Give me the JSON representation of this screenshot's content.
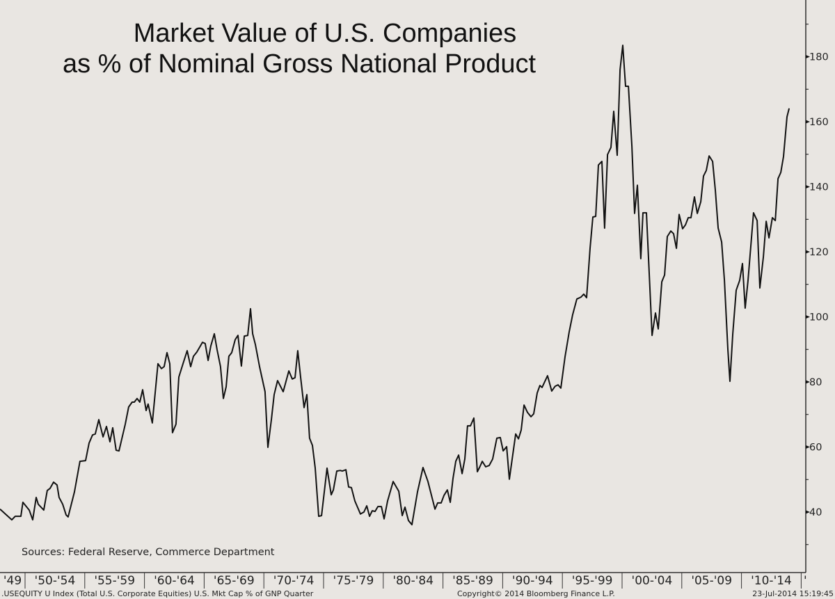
{
  "chart_data": {
    "type": "line",
    "title": [
      "Market Value of U.S. Companies",
      "as % of Nominal Gross National Product"
    ],
    "source_note": "Sources: Federal Reserve, Commerce Department",
    "xlabel": "",
    "ylabel": "",
    "y_axis_side": "right",
    "ylim": [
      28,
      197
    ],
    "xlim": [
      1947.9,
      2015.2
    ],
    "y_ticks": [
      40,
      60,
      80,
      100,
      120,
      140,
      160,
      180
    ],
    "y_minor_ticks": [
      30,
      50,
      70,
      90,
      110,
      130,
      150,
      170,
      190
    ],
    "x_bands": [
      {
        "label": "'49",
        "start": 1947.9,
        "end": 1950
      },
      {
        "label": "'50-'54",
        "start": 1950,
        "end": 1955
      },
      {
        "label": "'55-'59",
        "start": 1955,
        "end": 1960
      },
      {
        "label": "'60-'64",
        "start": 1960,
        "end": 1965
      },
      {
        "label": "'65-'69",
        "start": 1965,
        "end": 1970
      },
      {
        "label": "'70-'74",
        "start": 1970,
        "end": 1975
      },
      {
        "label": "'75-'79",
        "start": 1975,
        "end": 1980
      },
      {
        "label": "'80-'84",
        "start": 1980,
        "end": 1985
      },
      {
        "label": "'85-'89",
        "start": 1985,
        "end": 1990
      },
      {
        "label": "'90-'94",
        "start": 1990,
        "end": 1995
      },
      {
        "label": "'95-'99",
        "start": 1995,
        "end": 2000
      },
      {
        "label": "'00-'04",
        "start": 2000,
        "end": 2005
      },
      {
        "label": "'05-'09",
        "start": 2005,
        "end": 2010
      },
      {
        "label": "'10-'14",
        "start": 2010,
        "end": 2015
      },
      {
        "label": "'",
        "start": 2015,
        "end": 2015.4
      }
    ],
    "grid": false,
    "legend": "none",
    "series": [
      {
        "name": "U.S. Mkt Cap % of GNP",
        "color": "#111111",
        "x": [
          1947.9,
          1948.89,
          1949.18,
          1949.65,
          1949.82,
          1950.35,
          1950.64,
          1950.93,
          1951.11,
          1951.57,
          1951.86,
          1952.1,
          1952.39,
          1952.68,
          1952.85,
          1953.15,
          1953.44,
          1953.61,
          1954.14,
          1954.6,
          1955.07,
          1955.36,
          1955.65,
          1955.88,
          1956.18,
          1956.53,
          1956.82,
          1957.11,
          1957.34,
          1957.63,
          1957.87,
          1958.39,
          1958.68,
          1958.97,
          1959.15,
          1959.38,
          1959.61,
          1959.85,
          1960.14,
          1960.31,
          1960.66,
          1961.13,
          1961.42,
          1961.65,
          1961.89,
          1962.12,
          1962.35,
          1962.64,
          1962.88,
          1963.23,
          1963.58,
          1963.87,
          1964.1,
          1964.39,
          1964.86,
          1965.09,
          1965.33,
          1965.56,
          1965.85,
          1966.08,
          1966.37,
          1966.61,
          1966.84,
          1967.07,
          1967.31,
          1967.6,
          1967.83,
          1968.12,
          1968.36,
          1968.65,
          1968.88,
          1969.06,
          1969.29,
          1969.64,
          1970.1,
          1970.34,
          1970.63,
          1970.86,
          1971.15,
          1971.62,
          1972.09,
          1972.38,
          1972.61,
          1972.84,
          1973.08,
          1973.37,
          1973.6,
          1973.83,
          1974.07,
          1974.3,
          1974.59,
          1974.83,
          1975.29,
          1975.64,
          1975.82,
          1976.11,
          1976.4,
          1976.57,
          1976.87,
          1977.1,
          1977.33,
          1977.62,
          1978.09,
          1978.38,
          1978.62,
          1978.85,
          1979.08,
          1979.31,
          1979.55,
          1979.84,
          1980.07,
          1980.36,
          1980.83,
          1981.3,
          1981.59,
          1981.82,
          1982.11,
          1982.4,
          1982.87,
          1983.33,
          1983.74,
          1984.33,
          1984.56,
          1984.85,
          1985.08,
          1985.37,
          1985.61,
          1985.84,
          1986.07,
          1986.31,
          1986.6,
          1986.83,
          1987.06,
          1987.3,
          1987.59,
          1987.88,
          1988.06,
          1988.29,
          1988.58,
          1988.87,
          1989.16,
          1989.51,
          1989.8,
          1990.04,
          1990.33,
          1990.56,
          1991.09,
          1991.32,
          1991.55,
          1991.79,
          1992.08,
          1992.37,
          1992.6,
          1992.89,
          1993.12,
          1993.3,
          1993.76,
          1994.11,
          1994.4,
          1994.64,
          1994.87,
          1995.22,
          1995.57,
          1995.86,
          1996.21,
          1996.56,
          1996.79,
          1997.03,
          1997.32,
          1997.55,
          1997.79,
          1998.02,
          1998.31,
          1998.54,
          1998.78,
          1999.07,
          1999.3,
          1999.59,
          1999.83,
          2000.06,
          2000.29,
          2000.53,
          2000.82,
          2001.05,
          2001.28,
          2001.57,
          2001.75,
          2002.04,
          2002.51,
          2002.8,
          2003.03,
          2003.33,
          2003.56,
          2003.79,
          2004.08,
          2004.31,
          2004.55,
          2004.78,
          2005.07,
          2005.31,
          2005.54,
          2005.77,
          2006.06,
          2006.3,
          2006.59,
          2006.82,
          2007.05,
          2007.29,
          2007.58,
          2007.81,
          2008.05,
          2008.34,
          2008.57,
          2008.86,
          2009.03,
          2009.27,
          2009.56,
          2009.85,
          2010.08,
          2010.31,
          2010.55,
          2011.01,
          2011.31,
          2011.54,
          2011.83,
          2012.07,
          2012.3,
          2012.59,
          2012.83,
          2013.06,
          2013.29,
          2013.52,
          2013.81,
          2013.99
        ],
        "values": [
          40.9,
          37.6,
          38.7,
          38.7,
          43.0,
          40.6,
          37.6,
          44.5,
          42.4,
          40.6,
          46.6,
          47.3,
          49.2,
          48.3,
          44.5,
          42.4,
          39.1,
          38.5,
          46.2,
          55.6,
          55.8,
          61.2,
          63.7,
          64.0,
          68.4,
          63.1,
          66.3,
          61.6,
          65.9,
          59.0,
          58.8,
          67.0,
          72.3,
          73.8,
          73.8,
          74.9,
          73.8,
          77.6,
          71.2,
          73.2,
          67.4,
          85.6,
          84.1,
          84.7,
          89.0,
          85.6,
          64.4,
          67.0,
          81.5,
          85.6,
          89.6,
          84.7,
          87.9,
          89.2,
          92.2,
          91.8,
          86.6,
          91.1,
          94.8,
          90.0,
          84.7,
          74.9,
          78.5,
          87.9,
          89.0,
          93.0,
          94.3,
          84.9,
          94.1,
          94.3,
          102.5,
          94.8,
          91.5,
          84.7,
          77.0,
          59.9,
          68.4,
          76.1,
          80.4,
          77.0,
          83.4,
          80.9,
          81.3,
          89.6,
          81.3,
          72.1,
          76.1,
          62.7,
          60.5,
          53.5,
          38.7,
          38.9,
          53.5,
          45.3,
          46.8,
          52.6,
          52.8,
          52.6,
          53.0,
          47.7,
          47.5,
          43.4,
          39.4,
          40.0,
          41.9,
          38.7,
          40.4,
          40.2,
          41.7,
          41.7,
          37.9,
          43.4,
          49.4,
          46.4,
          38.9,
          41.5,
          37.4,
          36.1,
          46.2,
          53.7,
          49.4,
          40.9,
          42.8,
          42.8,
          45.1,
          46.8,
          43.0,
          50.3,
          55.6,
          57.5,
          51.8,
          56.3,
          66.5,
          66.5,
          68.9,
          52.4,
          53.7,
          55.6,
          53.9,
          54.3,
          56.3,
          62.7,
          62.9,
          58.8,
          60.1,
          50.1,
          64.0,
          62.5,
          65.2,
          72.9,
          70.6,
          69.3,
          70.2,
          76.6,
          78.9,
          78.3,
          81.9,
          77.2,
          78.7,
          79.1,
          78.1,
          87.7,
          95.4,
          100.7,
          105.5,
          106.1,
          107.0,
          105.9,
          121.1,
          130.7,
          130.9,
          146.7,
          147.8,
          127.3,
          149.9,
          152.1,
          163.2,
          149.7,
          176.0,
          183.5,
          170.9,
          170.9,
          152.5,
          131.8,
          140.5,
          117.9,
          132.0,
          132.0,
          94.3,
          101.2,
          96.3,
          110.8,
          112.9,
          124.7,
          126.4,
          125.6,
          121.1,
          131.5,
          127.1,
          128.3,
          130.5,
          130.5,
          136.9,
          131.8,
          135.4,
          143.3,
          145.0,
          149.5,
          147.8,
          139.0,
          127.3,
          123.0,
          111.2,
          90.1,
          80.2,
          94.8,
          108.2,
          111.2,
          116.4,
          102.7,
          111.2,
          132.0,
          129.6,
          108.9,
          118.3,
          129.4,
          124.3,
          130.5,
          129.6,
          142.5,
          144.4,
          149.3,
          161.5,
          164.1
        ]
      }
    ]
  },
  "footer": {
    "index_description": ".USEQUITY U Index (Total U.S. Corporate Equities) U.S. Mkt Cap % of GNP  Quarter",
    "copyright": "Copyright© 2014 Bloomberg Finance L.P.",
    "timestamp": "23-Jul-2014 15:19:45"
  },
  "colors": {
    "background": "#e9e6e2",
    "line": "#111111",
    "axis": "#111111"
  }
}
